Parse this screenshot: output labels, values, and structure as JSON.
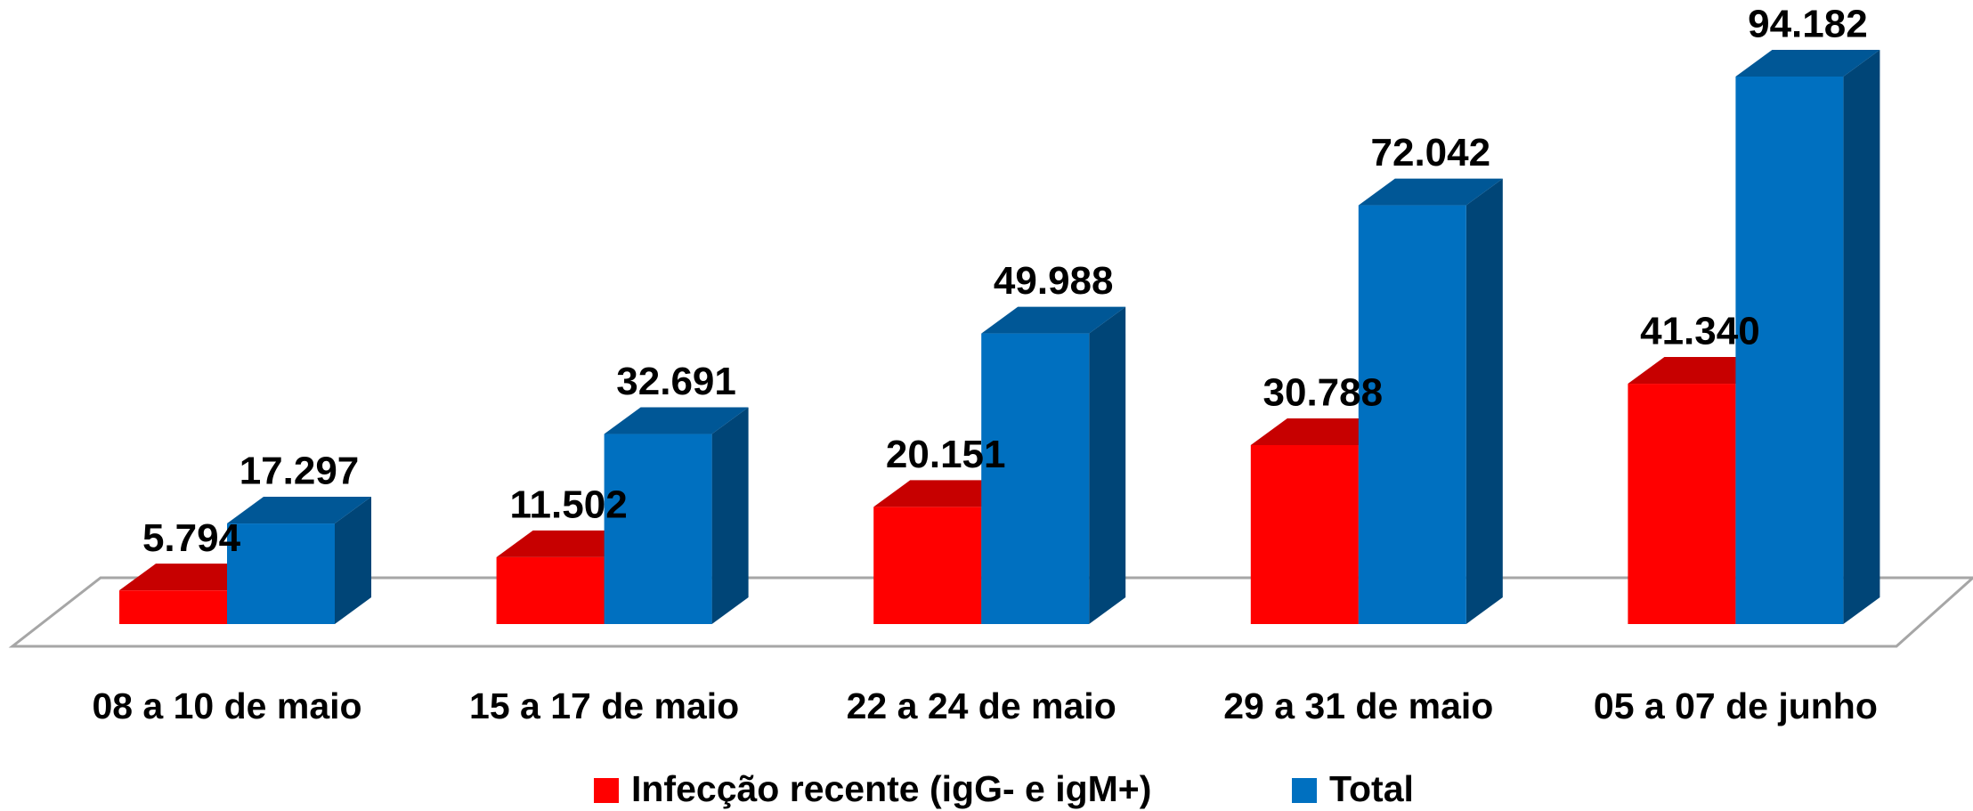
{
  "chart_data": {
    "type": "bar3d",
    "categories": [
      "08 a 10 de maio",
      "15 a 17 de maio",
      "22 a 24 de maio",
      "29 a 31 de maio",
      "05 a 07 de junho"
    ],
    "series": [
      {
        "name": "Infecção recente (igG- e igM+)",
        "color": "#ff0000",
        "values": [
          5794,
          11502,
          20151,
          30788,
          41340
        ],
        "value_labels": [
          "5.794",
          "11.502",
          "20.151",
          "30.788",
          "41.340"
        ]
      },
      {
        "name": "Total",
        "color": "#0070c0",
        "values": [
          17297,
          32691,
          49988,
          72042,
          94182
        ],
        "value_labels": [
          "17.297",
          "32.691",
          "49.988",
          "72.042",
          "94.182"
        ]
      }
    ],
    "legend": "bottom"
  }
}
